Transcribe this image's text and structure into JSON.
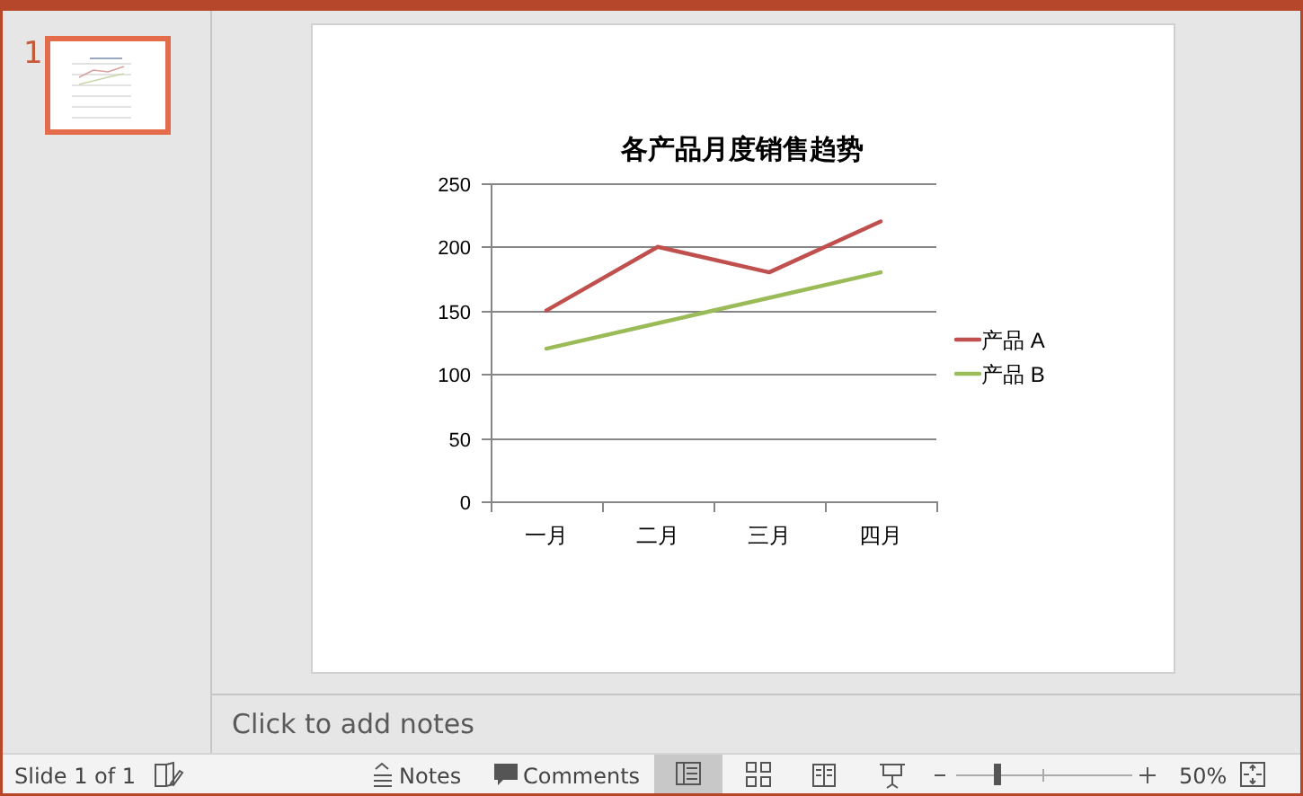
{
  "chart_data": {
    "type": "line",
    "title": "各产品月度销售趋势",
    "categories": [
      "一月",
      "二月",
      "三月",
      "四月"
    ],
    "series": [
      {
        "name": "产品 A",
        "color": "#c0504d",
        "values": [
          150,
          200,
          180,
          220
        ]
      },
      {
        "name": "产品 B",
        "color": "#9bbb59",
        "values": [
          120,
          140,
          160,
          180
        ]
      }
    ],
    "ylim": [
      0,
      250
    ],
    "yticks": [
      0,
      50,
      100,
      150,
      200,
      250
    ],
    "grid": "y",
    "legend": "right",
    "marker": "none",
    "line_style": "solid",
    "annotations": [
      "1",
      "Click to add notes",
      "Slide 1 of 1",
      "Notes",
      "Comments",
      "50%"
    ]
  }
}
